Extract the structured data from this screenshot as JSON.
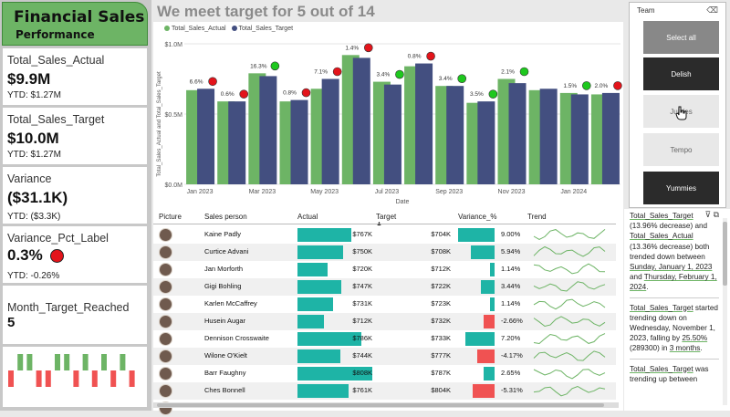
{
  "title": {
    "line1": "Financial Sales",
    "line2": "Performance"
  },
  "kpis": {
    "actual": {
      "label": "Total_Sales_Actual",
      "value": "$9.9M",
      "ytd": "YTD: $1.27M"
    },
    "target": {
      "label": "Total_Sales_Target",
      "value": "$10.0M",
      "ytd": "YTD: $1.27M"
    },
    "variance": {
      "label": "Variance",
      "value": "($31.1K)",
      "ytd": "YTD: ($3.3K)"
    },
    "pct": {
      "label": "Variance_Pct_Label",
      "value": "0.3%",
      "ytd": "YTD: -0.26%"
    },
    "month": {
      "label": "Month_Target_Reached",
      "value": "5"
    }
  },
  "main_title": "We meet target for 5 out of 14",
  "colors": {
    "actual": "#6db465",
    "target": "#434f80",
    "teal": "#1eb4a6",
    "pos": "#1eb4a6",
    "neg": "#f05252",
    "green_dot": "#1ec81e",
    "red_dot": "#e3141b"
  },
  "chart_data": {
    "type": "bar",
    "legend": [
      "Total_Sales_Actual",
      "Total_Sales_Target"
    ],
    "ylabel": "Total_Sales_Actual and Total_Sales_Target",
    "xlabel": "Date",
    "yticks": [
      "$1.0M",
      "$0.5M",
      "$0.0M"
    ],
    "ylim": [
      0,
      1.0
    ],
    "xtick_labels": [
      "Jan 2023",
      "Mar 2023",
      "May 2023",
      "Jul 2023",
      "Sep 2023",
      "Nov 2023",
      "Jan 2024"
    ],
    "categories": [
      "Jan 2023",
      "Feb 2023",
      "Mar 2023",
      "Apr 2023",
      "May 2023",
      "Jun 2023",
      "Jul 2023",
      "Aug 2023",
      "Sep 2023",
      "Oct 2023",
      "Nov 2023",
      "Dec 2023",
      "Jan 2024",
      "Feb 2024"
    ],
    "series": [
      {
        "name": "Total_Sales_Actual",
        "values": [
          0.67,
          0.59,
          0.79,
          0.59,
          0.68,
          0.92,
          0.73,
          0.84,
          0.7,
          0.58,
          0.75,
          0.67,
          0.65,
          0.64
        ]
      },
      {
        "name": "Total_Sales_Target",
        "values": [
          0.68,
          0.59,
          0.77,
          0.6,
          0.75,
          0.9,
          0.71,
          0.86,
          0.7,
          0.59,
          0.72,
          0.68,
          0.64,
          0.65
        ]
      }
    ],
    "labels": [
      "6.6%",
      "0.6%",
      "16.3%",
      "0.8%",
      "7.1%",
      "1.4%",
      "3.4%",
      "0.8%",
      "3.4%",
      "3.5%",
      "2.1%",
      "",
      "1.5%",
      "2.0%"
    ],
    "dots": [
      "red",
      "red",
      "green",
      "red",
      "red",
      "red",
      "green",
      "red",
      "green",
      "green",
      "green",
      "",
      "green",
      "red"
    ]
  },
  "slicer": {
    "header": "Team",
    "eraser_icon": "eraser-icon",
    "options": [
      {
        "label": "Select all",
        "bg": "#888888",
        "fg": "#ffffff"
      },
      {
        "label": "Delish",
        "bg": "#2b2b2b",
        "fg": "#ffffff"
      },
      {
        "label": "Juicies",
        "bg": "#e8e8e8",
        "fg": "#666666"
      },
      {
        "label": "Tempo",
        "bg": "#e8e8e8",
        "fg": "#666666"
      },
      {
        "label": "Yummies",
        "bg": "#2b2b2b",
        "fg": "#ffffff"
      }
    ]
  },
  "table": {
    "headers": [
      "Picture",
      "Sales person",
      "Actual",
      "Target",
      "Variance_%",
      "Trend"
    ],
    "rows": [
      {
        "name": "Kaine Padly",
        "actual": "$767K",
        "target": "$704K",
        "var": "9.00%",
        "actual_k": 767,
        "var_pct": 9.0
      },
      {
        "name": "Curtice Advani",
        "actual": "$750K",
        "target": "$708K",
        "var": "5.94%",
        "actual_k": 750,
        "var_pct": 5.94
      },
      {
        "name": "Jan Morforth",
        "actual": "$720K",
        "target": "$712K",
        "var": "1.14%",
        "actual_k": 720,
        "var_pct": 1.14
      },
      {
        "name": "Gigi Bohling",
        "actual": "$747K",
        "target": "$722K",
        "var": "3.44%",
        "actual_k": 747,
        "var_pct": 3.44
      },
      {
        "name": "Karlen McCaffrey",
        "actual": "$731K",
        "target": "$723K",
        "var": "1.14%",
        "actual_k": 731,
        "var_pct": 1.14
      },
      {
        "name": "Husein Augar",
        "actual": "$712K",
        "target": "$732K",
        "var": "-2.66%",
        "actual_k": 712,
        "var_pct": -2.66
      },
      {
        "name": "Dennison Crosswaite",
        "actual": "$786K",
        "target": "$733K",
        "var": "7.20%",
        "actual_k": 786,
        "var_pct": 7.2
      },
      {
        "name": "Wilone O'Kielt",
        "actual": "$744K",
        "target": "$777K",
        "var": "-4.17%",
        "actual_k": 744,
        "var_pct": -4.17
      },
      {
        "name": "Barr Faughny",
        "actual": "$808K",
        "target": "$787K",
        "var": "2.65%",
        "actual_k": 808,
        "var_pct": 2.65
      },
      {
        "name": "Ches Bonnell",
        "actual": "$761K",
        "target": "$804K",
        "var": "-5.31%",
        "actual_k": 761,
        "var_pct": -5.31
      },
      {
        "name": "",
        "actual": "",
        "target": "",
        "var": "",
        "actual_k": 0,
        "var_pct": 0
      }
    ]
  },
  "narrative": {
    "p1a": "Total_Sales_Target",
    "p1b": " (13.96% decrease) and ",
    "p1c": "Total_Sales_Actual",
    "p1d": " (13.36% decrease) both trended down between ",
    "p1e": "Sunday, January 1, 2023",
    "p1f": " and ",
    "p1g": "Thursday, February 1, 2024",
    "p1h": ".",
    "p2a": "Total_Sales_Target",
    "p2b": " started trending down on Wednesday, November 1, 2023",
    "p2c": ", falling by ",
    "p2d": "25.50%",
    "p2e": " (289300",
    "p2f": ") in ",
    "p2g": "3 months",
    "p2h": ".",
    "p3a": "Total_Sales_Target",
    "p3b": " was trending up between",
    "icons": [
      "filter-icon",
      "expand-icon"
    ]
  }
}
